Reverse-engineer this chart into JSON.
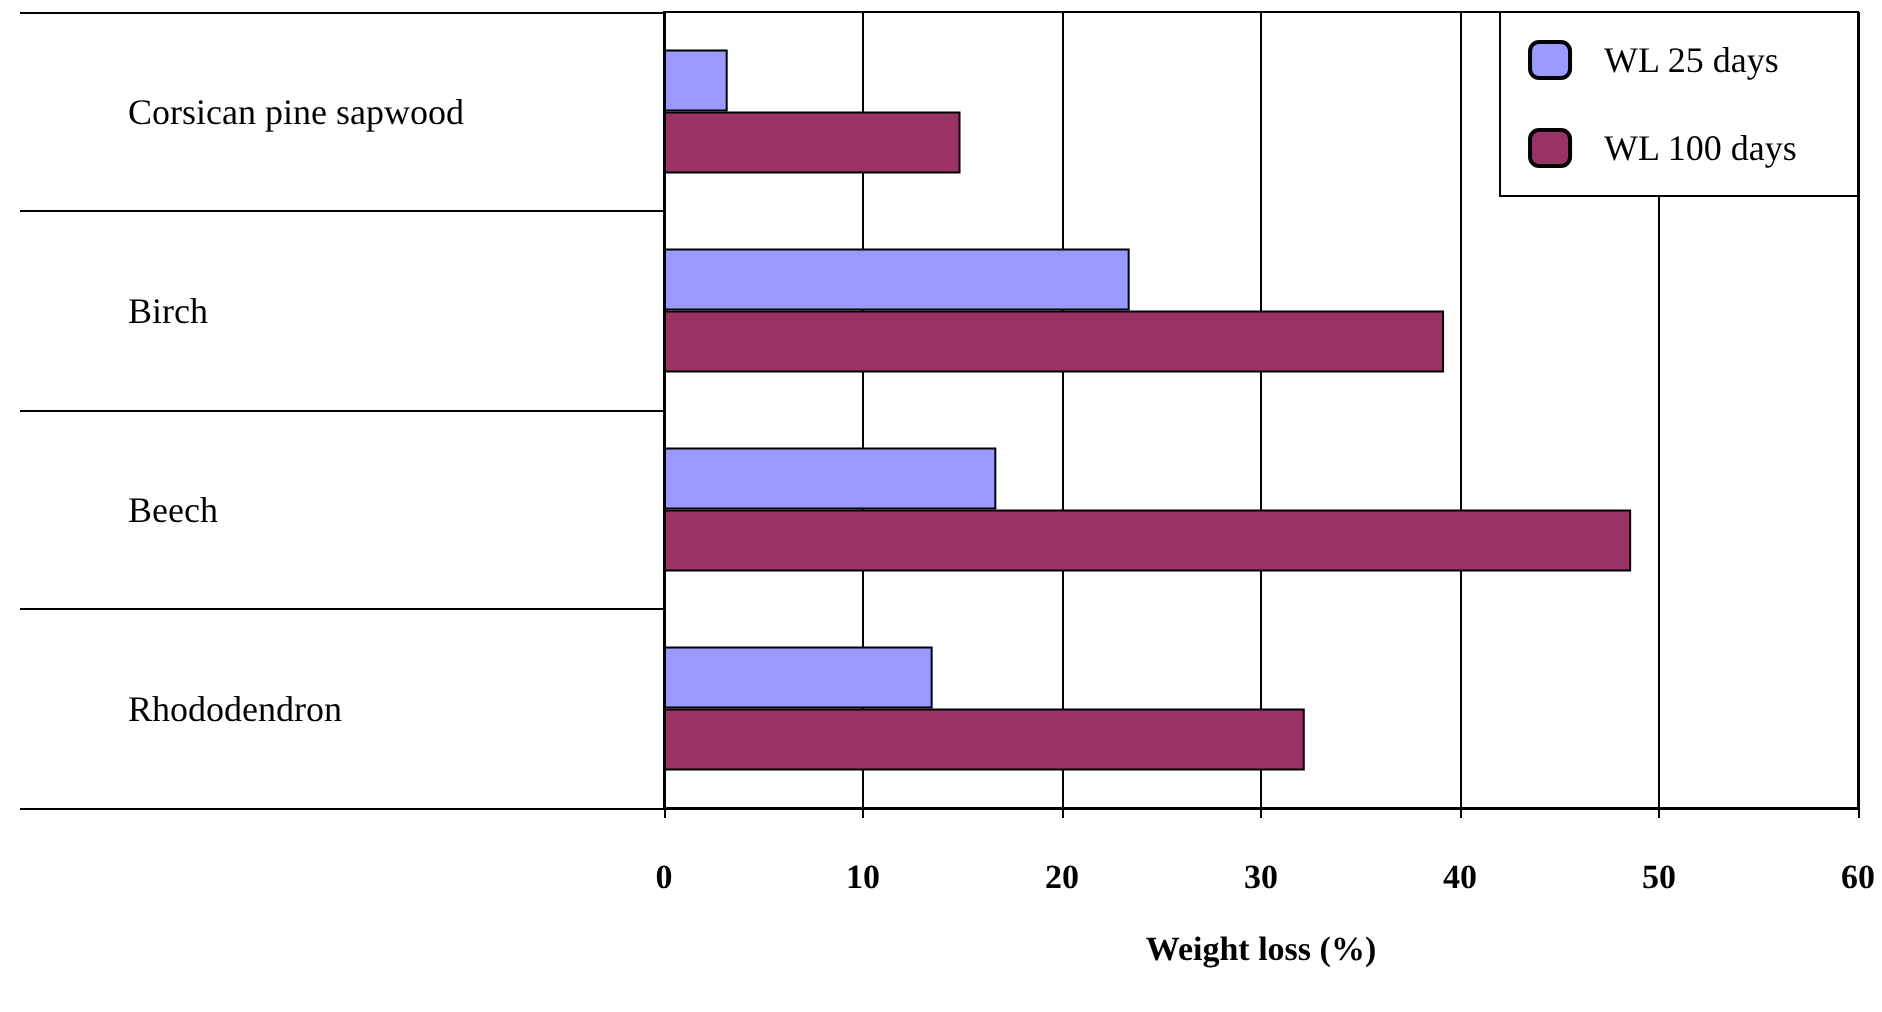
{
  "chart_data": {
    "type": "bar",
    "orientation": "horizontal",
    "xlabel": "Weight loss (%)",
    "categories": [
      "Corsican pine sapwood",
      "Birch",
      "Beech",
      "Rhododendron"
    ],
    "series": [
      {
        "name": "WL 25 days",
        "color": "#9999ff",
        "values": [
          3.2,
          23.4,
          16.7,
          13.5
        ]
      },
      {
        "name": "WL 100 days",
        "color": "#993366",
        "values": [
          14.9,
          39.2,
          48.6,
          32.2
        ]
      }
    ],
    "xlim": [
      0,
      60
    ],
    "xticks": [
      0,
      10,
      20,
      30,
      40,
      50,
      60
    ],
    "grid": "x",
    "legend": "top right"
  }
}
